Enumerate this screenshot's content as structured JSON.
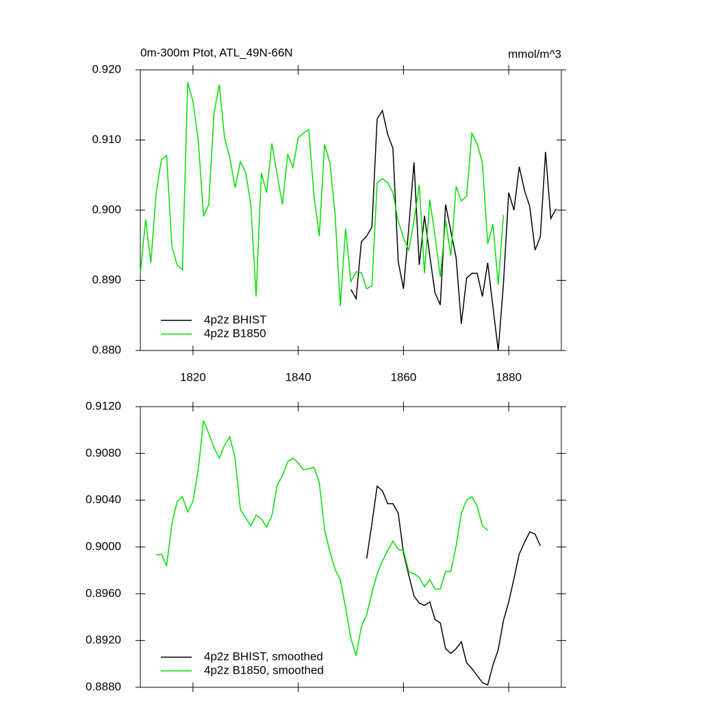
{
  "chart_data": [
    {
      "type": "line",
      "title": "0m-300m Ptot, ATL_49N-66N",
      "units": "mmol/m^3",
      "xlim": [
        1810,
        1890
      ],
      "xticks": [
        1820,
        1840,
        1860,
        1880
      ],
      "ylim": [
        0.88,
        0.92
      ],
      "yticks": [
        {
          "value": 0.88,
          "label": "0.880"
        },
        {
          "value": 0.89,
          "label": "0.890"
        },
        {
          "value": 0.9,
          "label": "0.900"
        },
        {
          "value": 0.91,
          "label": "0.910"
        },
        {
          "value": 0.92,
          "label": "0.920"
        }
      ],
      "legend": "lower left",
      "series": [
        {
          "name": "4p2z BHIST",
          "color": "#000000",
          "x": [
            1850,
            1851,
            1852,
            1853,
            1854,
            1855,
            1856,
            1857,
            1858,
            1859,
            1860,
            1861,
            1862,
            1863,
            1864,
            1865,
            1866,
            1867,
            1868,
            1869,
            1870,
            1871,
            1872,
            1873,
            1874,
            1875,
            1876,
            1877,
            1878,
            1879,
            1880,
            1881,
            1882,
            1883,
            1884,
            1885,
            1886,
            1887,
            1888,
            1889
          ],
          "values": [
            0.8887,
            0.8874,
            0.8955,
            0.8963,
            0.8976,
            0.913,
            0.9142,
            0.9108,
            0.9088,
            0.8927,
            0.8888,
            0.8975,
            0.9068,
            0.8922,
            0.8992,
            0.8935,
            0.8882,
            0.8865,
            0.9008,
            0.897,
            0.8932,
            0.8838,
            0.8903,
            0.891,
            0.891,
            0.8877,
            0.8925,
            0.8862,
            0.88,
            0.8895,
            0.9025,
            0.9,
            0.9062,
            0.9028,
            0.9005,
            0.8943,
            0.8962,
            0.9083,
            0.8988,
            0.9002
          ]
        },
        {
          "name": "4p2z B1850",
          "color": "#00dd00",
          "x": [
            1810,
            1811,
            1812,
            1813,
            1814,
            1815,
            1816,
            1817,
            1818,
            1819,
            1820,
            1821,
            1822,
            1823,
            1824,
            1825,
            1826,
            1827,
            1828,
            1829,
            1830,
            1831,
            1832,
            1833,
            1834,
            1835,
            1836,
            1837,
            1838,
            1839,
            1840,
            1841,
            1842,
            1843,
            1844,
            1845,
            1846,
            1847,
            1848,
            1849,
            1850,
            1851,
            1852,
            1853,
            1854,
            1855,
            1856,
            1857,
            1858,
            1859,
            1860,
            1861,
            1862,
            1863,
            1864,
            1865,
            1866,
            1867,
            1868,
            1869,
            1870,
            1871,
            1872,
            1873,
            1874,
            1875,
            1876,
            1877,
            1878,
            1879
          ],
          "values": [
            0.891,
            0.8987,
            0.8925,
            0.9025,
            0.9072,
            0.9078,
            0.8948,
            0.8922,
            0.8915,
            0.9182,
            0.9155,
            0.91,
            0.8991,
            0.9008,
            0.9138,
            0.9179,
            0.9103,
            0.9075,
            0.9032,
            0.9069,
            0.9054,
            0.9008,
            0.8877,
            0.9053,
            0.9025,
            0.9095,
            0.905,
            0.9008,
            0.908,
            0.9061,
            0.9103,
            0.911,
            0.9115,
            0.902,
            0.8963,
            0.9094,
            0.9068,
            0.8995,
            0.8863,
            0.8974,
            0.8898,
            0.8912,
            0.8911,
            0.8888,
            0.8892,
            0.9039,
            0.9045,
            0.9039,
            0.9025,
            0.8984,
            0.8961,
            0.8943,
            0.8985,
            0.9036,
            0.891,
            0.9015,
            0.8963,
            0.8905,
            0.8985,
            0.8935,
            0.9034,
            0.9013,
            0.902,
            0.911,
            0.9094,
            0.9068,
            0.8952,
            0.898,
            0.8894,
            0.8993
          ]
        }
      ]
    },
    {
      "type": "line",
      "xlim": [
        1810,
        1890
      ],
      "xticks": [
        1820,
        1840,
        1860,
        1880
      ],
      "ylim": [
        0.888,
        0.912
      ],
      "yticks": [
        {
          "value": 0.888,
          "label": "0.8880"
        },
        {
          "value": 0.892,
          "label": "0.8920"
        },
        {
          "value": 0.896,
          "label": "0.8960"
        },
        {
          "value": 0.9,
          "label": "0.9000"
        },
        {
          "value": 0.904,
          "label": "0.9040"
        },
        {
          "value": 0.908,
          "label": "0.9080"
        },
        {
          "value": 0.912,
          "label": "0.9120"
        }
      ],
      "legend": "lower left",
      "series": [
        {
          "name": "4p2z BHIST, smoothed",
          "color": "#000000",
          "x": [
            1853,
            1854,
            1855,
            1856,
            1857,
            1858,
            1859,
            1860,
            1861,
            1862,
            1863,
            1864,
            1865,
            1866,
            1867,
            1868,
            1869,
            1870,
            1871,
            1872,
            1873,
            1874,
            1875,
            1876,
            1877,
            1878,
            1879,
            1880,
            1881,
            1882,
            1883,
            1884,
            1885,
            1886
          ],
          "values": [
            0.899,
            0.902,
            0.9052,
            0.9048,
            0.9037,
            0.9037,
            0.9029,
            0.8995,
            0.8976,
            0.8958,
            0.8952,
            0.895,
            0.8953,
            0.8938,
            0.8935,
            0.8913,
            0.8909,
            0.8913,
            0.8919,
            0.8901,
            0.8896,
            0.889,
            0.8884,
            0.8882,
            0.8899,
            0.8912,
            0.8937,
            0.8953,
            0.8973,
            0.8994,
            0.9004,
            0.9013,
            0.9011,
            0.9001
          ]
        },
        {
          "name": "4p2z B1850, smoothed",
          "color": "#00dd00",
          "x": [
            1813,
            1814,
            1815,
            1816,
            1817,
            1818,
            1819,
            1820,
            1821,
            1822,
            1823,
            1824,
            1825,
            1826,
            1827,
            1828,
            1829,
            1830,
            1831,
            1832,
            1833,
            1834,
            1835,
            1836,
            1837,
            1838,
            1839,
            1840,
            1841,
            1842,
            1843,
            1844,
            1845,
            1846,
            1847,
            1848,
            1849,
            1850,
            1851,
            1852,
            1853,
            1854,
            1855,
            1856,
            1857,
            1858,
            1859,
            1860,
            1861,
            1862,
            1863,
            1864,
            1865,
            1866,
            1867,
            1868,
            1869,
            1870,
            1871,
            1872,
            1873,
            1874,
            1875,
            1876
          ],
          "values": [
            0.8993,
            0.8994,
            0.8984,
            0.902,
            0.9039,
            0.9043,
            0.903,
            0.9039,
            0.9066,
            0.9108,
            0.9097,
            0.9085,
            0.9076,
            0.9087,
            0.9094,
            0.9076,
            0.9032,
            0.9025,
            0.9018,
            0.9027,
            0.9024,
            0.9017,
            0.9027,
            0.9053,
            0.9061,
            0.9073,
            0.9076,
            0.9072,
            0.9066,
            0.9067,
            0.9068,
            0.9055,
            0.9015,
            0.8996,
            0.8981,
            0.8972,
            0.8948,
            0.8922,
            0.8907,
            0.8932,
            0.8942,
            0.8961,
            0.8977,
            0.8988,
            0.8997,
            0.9005,
            0.8998,
            0.8997,
            0.8979,
            0.8977,
            0.8974,
            0.8966,
            0.8972,
            0.8964,
            0.8964,
            0.8979,
            0.8979,
            0.9001,
            0.9029,
            0.904,
            0.9043,
            0.9035,
            0.9018,
            0.9014
          ]
        }
      ]
    }
  ]
}
